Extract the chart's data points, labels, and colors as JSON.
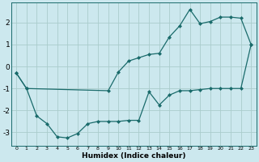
{
  "xlabel": "Humidex (Indice chaleur)",
  "bg_color": "#cce8ee",
  "grid_color": "#aacccc",
  "line_color": "#1a6b6b",
  "xlim": [
    -0.5,
    23.5
  ],
  "ylim": [
    -3.6,
    2.9
  ],
  "ytick_values": [
    -3,
    -2,
    -1,
    0,
    1,
    2
  ],
  "series1_x": [
    0,
    1,
    2,
    3,
    4,
    5,
    6,
    7,
    8,
    9,
    10,
    11,
    12,
    13,
    14,
    15,
    16,
    17,
    18,
    19,
    20,
    21,
    22,
    23
  ],
  "series1_y": [
    -0.3,
    -1.0,
    -2.25,
    -2.6,
    -3.2,
    -3.25,
    -3.05,
    -2.6,
    -2.5,
    -2.5,
    -2.5,
    -2.45,
    -2.45,
    -1.15,
    -1.75,
    -1.3,
    -1.1,
    -1.1,
    -1.05,
    -1.0,
    -1.0,
    -1.0,
    -1.0,
    1.0
  ],
  "series2_x": [
    0,
    1,
    9,
    10,
    11,
    12,
    13,
    14,
    15,
    16,
    17,
    18,
    19,
    20,
    21,
    22,
    23
  ],
  "series2_y": [
    -0.3,
    -1.0,
    -1.1,
    -0.25,
    0.25,
    0.4,
    0.55,
    0.6,
    1.35,
    1.85,
    2.6,
    1.95,
    2.05,
    2.25,
    2.25,
    2.2,
    1.0
  ]
}
